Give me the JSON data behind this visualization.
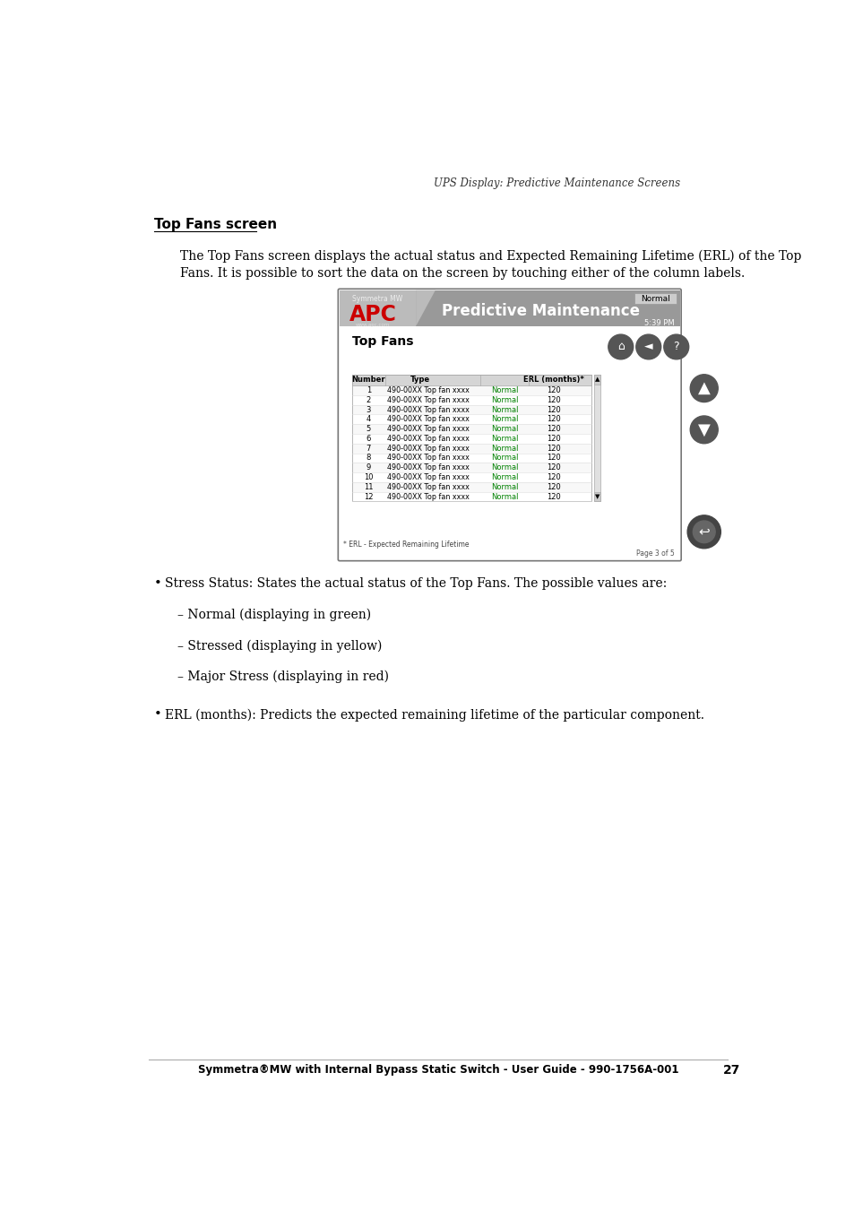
{
  "header_right_text": "UPS Display: Predictive Maintenance Screens",
  "section_title": "Top Fans screen",
  "para_line1": "The Top Fans screen displays the actual status and Expected Remaining Lifetime (ERL) of the Top",
  "para_line2": "Fans. It is possible to sort the data on the screen by touching either of the column labels.",
  "screen_title_small": "Symmetra MW",
  "screen_header_title": "Predictive Maintenance",
  "screen_status_label": "Normal",
  "screen_time": "5:39 PM",
  "screen_section": "Top Fans",
  "table_headers": [
    "Number",
    "Type",
    "",
    "ERL (months)*"
  ],
  "table_rows": [
    [
      "1",
      "490-00XX Top fan xxxx",
      "Normal",
      "120"
    ],
    [
      "2",
      "490-00XX Top fan xxxx",
      "Normal",
      "120"
    ],
    [
      "3",
      "490-00XX Top fan xxxx",
      "Normal",
      "120"
    ],
    [
      "4",
      "490-00XX Top fan xxxx",
      "Normal",
      "120"
    ],
    [
      "5",
      "490-00XX Top fan xxxx",
      "Normal",
      "120"
    ],
    [
      "6",
      "490-00XX Top fan xxxx",
      "Normal",
      "120"
    ],
    [
      "7",
      "490-00XX Top fan xxxx",
      "Normal",
      "120"
    ],
    [
      "8",
      "490-00XX Top fan xxxx",
      "Normal",
      "120"
    ],
    [
      "9",
      "490-00XX Top fan xxxx",
      "Normal",
      "120"
    ],
    [
      "10",
      "490-00XX Top fan xxxx",
      "Normal",
      "120"
    ],
    [
      "11",
      "490-00XX Top fan xxxx",
      "Normal",
      "120"
    ],
    [
      "12",
      "490-00XX Top fan xxxx",
      "Normal",
      "120"
    ]
  ],
  "footnote": "* ERL - Expected Remaining Lifetime",
  "page_label": "Page 3 of 5",
  "bullet1": "Stress Status: States the actual status of the Top Fans. The possible values are:",
  "sub1": "– Normal (displaying in green)",
  "sub2": "– Stressed (displaying in yellow)",
  "sub3": "– Major Stress (displaying in red)",
  "bullet2": "ERL (months): Predicts the expected remaining lifetime of the particular component.",
  "footer_text": "Symmetra®MW with Internal Bypass Static Switch - User Guide - 990-1756A-001",
  "footer_page": "27",
  "bg_color": "#ffffff",
  "normal_color": "#008000"
}
